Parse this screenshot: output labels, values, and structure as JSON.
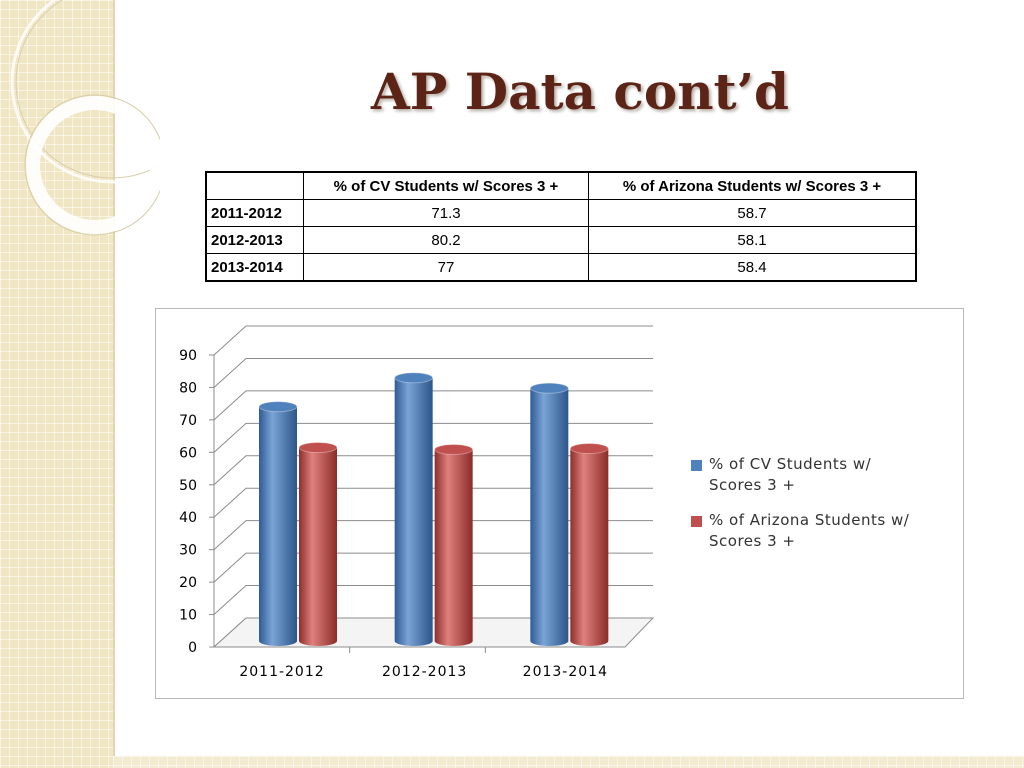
{
  "slide": {
    "title": "AP Data cont’d"
  },
  "table": {
    "headers": [
      "",
      "% of CV Students w/ Scores 3 +",
      "% of Arizona Students w/ Scores 3 +"
    ],
    "rows": [
      {
        "label": "2011-2012",
        "cv": "71.3",
        "az": "58.7"
      },
      {
        "label": "2012-2013",
        "cv": "80.2",
        "az": "58.1"
      },
      {
        "label": "2013-2014",
        "cv": "77",
        "az": "58.4"
      }
    ]
  },
  "chart_data": {
    "type": "bar",
    "style": "3d-cylinder",
    "categories": [
      "2011-2012",
      "2012-2013",
      "2013-2014"
    ],
    "series": [
      {
        "name": "% of CV Students w/ Scores 3 +",
        "values": [
          71.3,
          80.2,
          77
        ],
        "color": "#4f81bd"
      },
      {
        "name": "% of Arizona Students w/ Scores 3 +",
        "values": [
          58.7,
          58.1,
          58.4
        ],
        "color": "#c0504d"
      }
    ],
    "y_ticks": [
      "0",
      "10",
      "20",
      "30",
      "40",
      "50",
      "60",
      "70",
      "80",
      "90"
    ],
    "ylim": [
      0,
      90
    ],
    "grid": true,
    "legend_position": "right",
    "legend_lines": [
      [
        "% of CV Students w/",
        "Scores 3 +"
      ],
      [
        "% of Arizona Students w/",
        "Scores 3 +"
      ]
    ]
  }
}
